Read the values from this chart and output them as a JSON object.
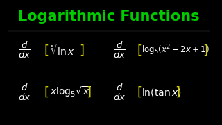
{
  "background_color": "#000000",
  "title": "Logarithmic Functions",
  "title_color": "#00cc00",
  "title_fontsize": 15,
  "underline_color": "#ffffff",
  "text_color": "#ffffff",
  "bracket_color": "#cccc00"
}
